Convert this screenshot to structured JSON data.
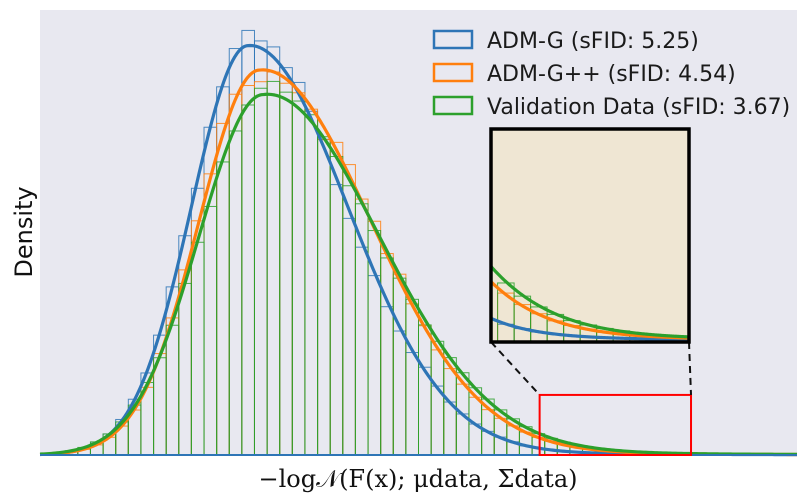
{
  "chart_data": {
    "type": "histogram-with-density",
    "xlabel": "−log𝒩(F(x); μdata, Σdata)",
    "ylabel": "Density",
    "xlim": [
      0,
      1
    ],
    "ylim": [
      0,
      1
    ],
    "grid": false,
    "legend_position": "top-right",
    "colors": {
      "background": "#e8e8f0",
      "blue": "#2e75b6",
      "orange": "#ff7f0e",
      "green": "#2ca02c",
      "zoom_box": "#ff0000",
      "inset_bg": "#efe6d3"
    },
    "series": [
      {
        "name": "ADM-G (sFID: 5.25)",
        "color": "#2e75b6",
        "mode": 0.275,
        "sigma_left": 0.075,
        "sigma_right": 0.13,
        "peak": 0.92,
        "tail": 0.4
      },
      {
        "name": "ADM-G++ (sFID: 4.54)",
        "color": "#ff7f0e",
        "mode": 0.29,
        "sigma_left": 0.08,
        "sigma_right": 0.145,
        "peak": 0.865,
        "tail": 0.55
      },
      {
        "name": "Validation Data (sFID: 3.67)",
        "color": "#2ca02c",
        "mode": 0.295,
        "sigma_left": 0.085,
        "sigma_right": 0.15,
        "peak": 0.81,
        "tail": 0.7
      }
    ],
    "histogram_bins": 60,
    "zoom_region": {
      "x": [
        0.66,
        0.86
      ],
      "y": [
        0,
        0.135
      ]
    }
  }
}
